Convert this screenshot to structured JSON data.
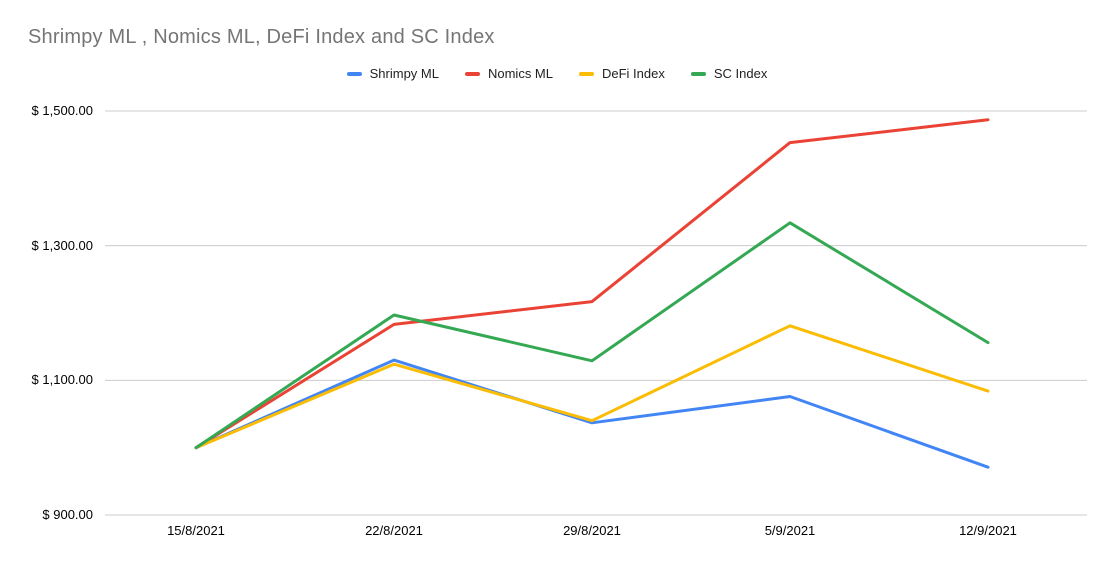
{
  "chart": {
    "title": "Shrimpy ML , Nomics ML, DeFi Index and SC Index"
  },
  "chart_data": {
    "type": "line",
    "title": "Shrimpy ML , Nomics ML, DeFi Index and SC Index",
    "xlabel": "",
    "ylabel": "",
    "categories": [
      "15/8/2021",
      "22/8/2021",
      "29/8/2021",
      "5/9/2021",
      "12/9/2021"
    ],
    "series": [
      {
        "name": "Shrimpy ML",
        "color": "#4285F4",
        "values": [
          1000,
          1130,
          1037,
          1076,
          971
        ]
      },
      {
        "name": "Nomics ML",
        "color": "#EA4335",
        "values": [
          1000,
          1183,
          1217,
          1453,
          1487
        ]
      },
      {
        "name": "DeFi Index",
        "color": "#FBBC04",
        "values": [
          1000,
          1124,
          1040,
          1181,
          1084
        ]
      },
      {
        "name": "SC Index",
        "color": "#34A853",
        "values": [
          1000,
          1197,
          1129,
          1334,
          1156
        ]
      }
    ],
    "ylim": [
      900,
      1500
    ],
    "y_ticks": [
      1500,
      1300,
      1100,
      900
    ],
    "y_tick_labels": [
      "$ 1,500.00",
      "$ 1,300.00",
      "$ 1,100.00",
      "$ 900.00"
    ],
    "currency_prefix": "$",
    "grid": "horizontal-only",
    "gridline_color": "#cccccc",
    "legend_position": "top-center"
  }
}
